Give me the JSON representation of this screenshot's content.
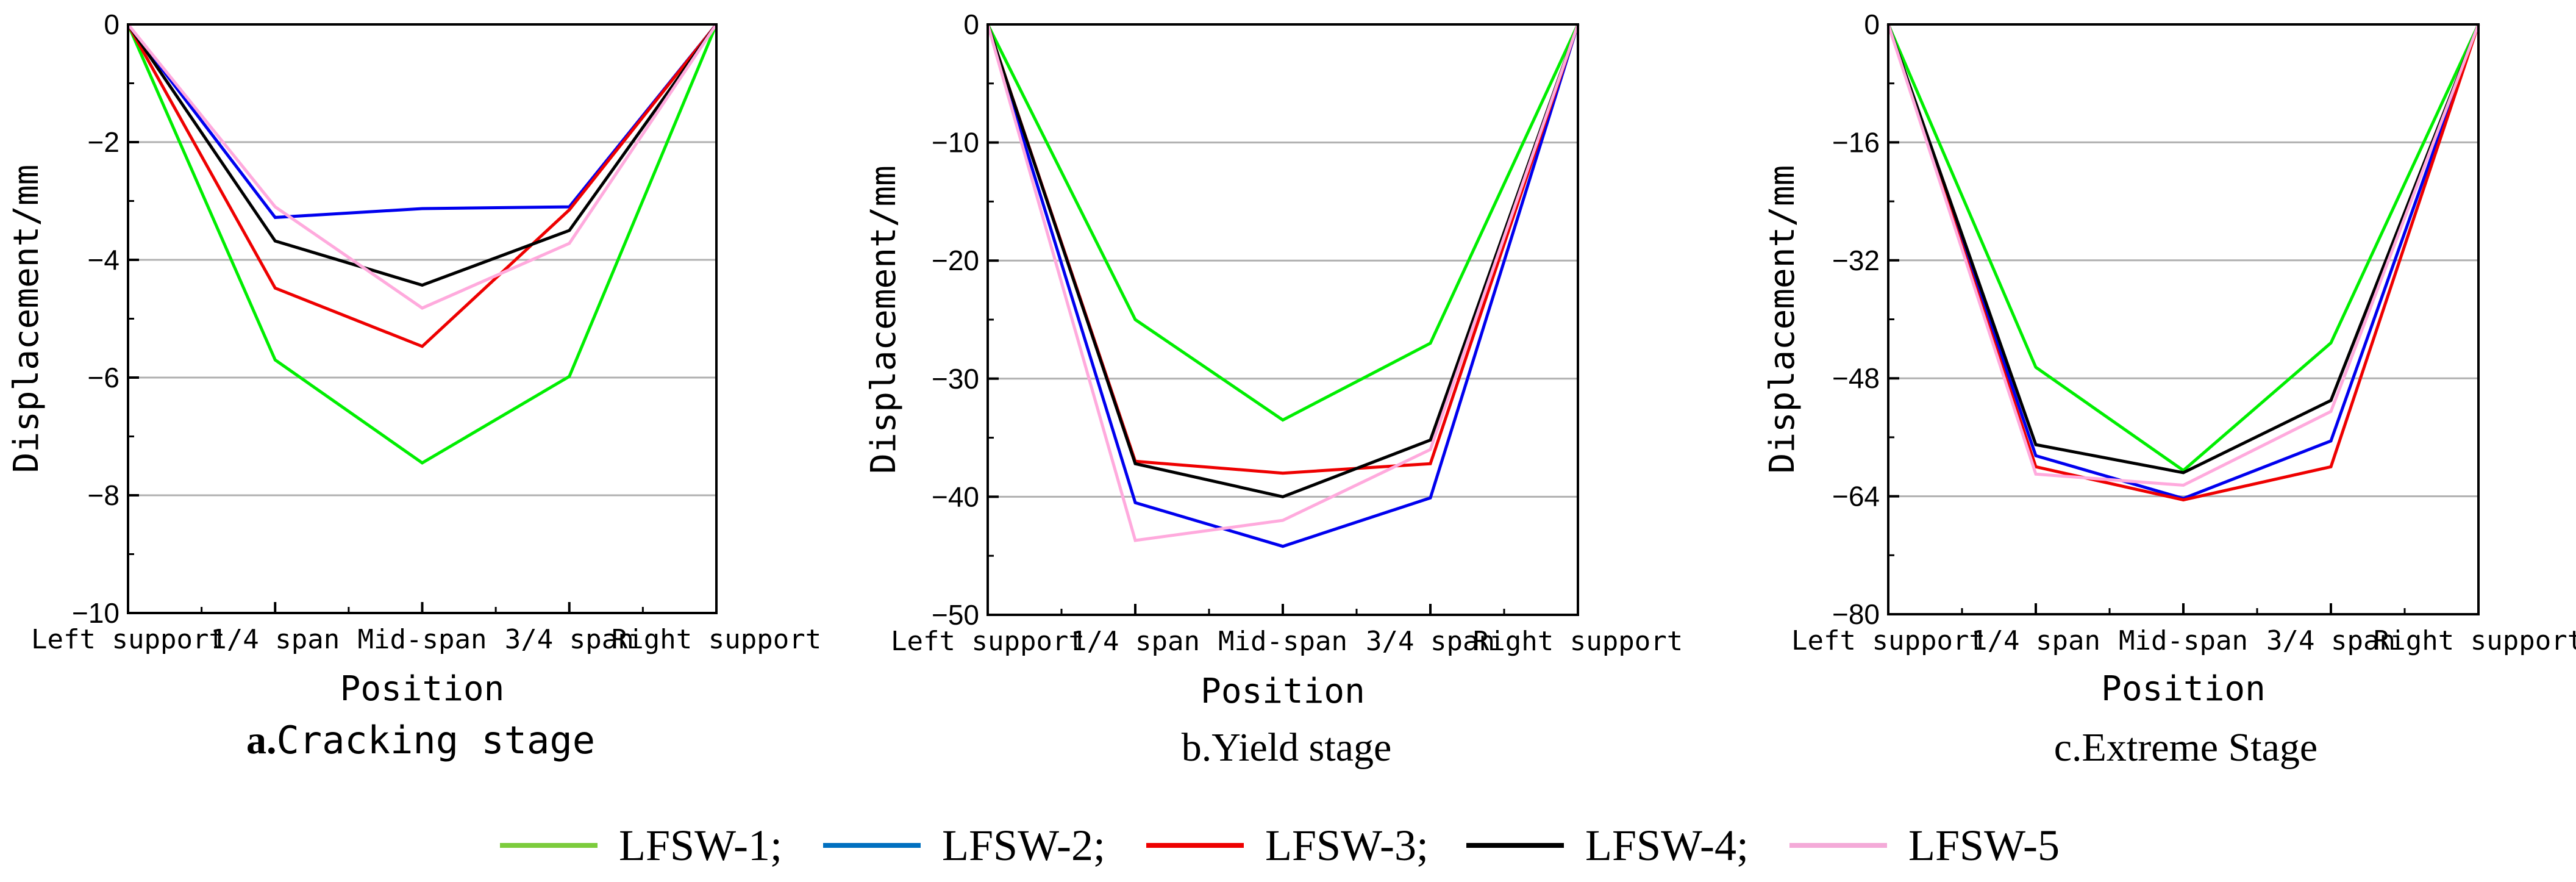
{
  "colors": {
    "LFSW-1": "#00ee00",
    "LFSW-2": "#0000ee",
    "LFSW-3": "#ee0000",
    "LFSW-4": "#000000",
    "LFSW-5": "#ffaadd"
  },
  "legend": {
    "entries": [
      {
        "label": "LFSW-1;",
        "series": "LFSW-1",
        "color": "#7ccc3c"
      },
      {
        "label": "LFSW-2;",
        "series": "LFSW-2",
        "color": "#0070c0"
      },
      {
        "label": "LFSW-3;",
        "series": "LFSW-3",
        "color": "#ee0000"
      },
      {
        "label": "LFSW-4;",
        "series": "LFSW-4",
        "color": "#000000"
      },
      {
        "label": "LFSW-5",
        "series": "LFSW-5",
        "color": "#f4aad8"
      }
    ]
  },
  "chart_data": [
    {
      "type": "line",
      "title_prefix": "a.",
      "title_main": "Cracking stage",
      "xlabel": "Position",
      "ylabel": "Displacement/mm",
      "categories": [
        "Left support",
        "1/4 span",
        "Mid-span",
        "3/4 span",
        "Right support"
      ],
      "ylim": [
        -10,
        0
      ],
      "yticks": [
        0,
        -2,
        -4,
        -6,
        -8,
        -10
      ],
      "ytick_labels": [
        "0",
        "−2",
        "−4",
        "−6",
        "−8",
        "−10"
      ],
      "grid": true,
      "series": [
        {
          "name": "LFSW-1",
          "values": [
            0,
            -5.7,
            -7.45,
            -5.98,
            0
          ]
        },
        {
          "name": "LFSW-2",
          "values": [
            0,
            -3.28,
            -3.13,
            -3.1,
            0
          ]
        },
        {
          "name": "LFSW-3",
          "values": [
            0,
            -4.48,
            -5.47,
            -3.15,
            0
          ]
        },
        {
          "name": "LFSW-4",
          "values": [
            0,
            -3.68,
            -4.43,
            -3.5,
            0
          ]
        },
        {
          "name": "LFSW-5",
          "values": [
            0,
            -3.1,
            -4.82,
            -3.72,
            0
          ]
        }
      ]
    },
    {
      "type": "line",
      "title_prefix": "",
      "title_main": "b.Yield stage",
      "xlabel": "Position",
      "ylabel": "Displacement/mm",
      "categories": [
        "Left support",
        "1/4 span",
        "Mid-span",
        "3/4 span",
        "Right support"
      ],
      "ylim": [
        -50,
        0
      ],
      "yticks": [
        0,
        -10,
        -20,
        -30,
        -40,
        -50
      ],
      "ytick_labels": [
        "0",
        "−10",
        "−20",
        "−30",
        "−40",
        "−50"
      ],
      "grid": true,
      "series": [
        {
          "name": "LFSW-1",
          "values": [
            0,
            -25,
            -33.5,
            -27,
            0
          ]
        },
        {
          "name": "LFSW-2",
          "values": [
            0,
            -40.5,
            -44.2,
            -40.1,
            0
          ]
        },
        {
          "name": "LFSW-3",
          "values": [
            0,
            -37,
            -38,
            -37.2,
            0
          ]
        },
        {
          "name": "LFSW-4",
          "values": [
            0,
            -37.2,
            -40,
            -35.2,
            0
          ]
        },
        {
          "name": "LFSW-5",
          "values": [
            0,
            -43.7,
            -42,
            -36,
            0
          ]
        }
      ]
    },
    {
      "type": "line",
      "title_prefix": "",
      "title_main": "c.Extreme Stage",
      "xlabel": "Position",
      "ylabel": "Displacement/mm",
      "categories": [
        "Left support",
        "1/4 span",
        "Mid-span",
        "3/4 span",
        "Right support"
      ],
      "ylim": [
        -80,
        0
      ],
      "yticks": [
        0,
        -16,
        -32,
        -48,
        -64,
        -80
      ],
      "ytick_labels": [
        "0",
        "−16",
        "−32",
        "−48",
        "−64",
        "−80"
      ],
      "grid": true,
      "series": [
        {
          "name": "LFSW-1",
          "values": [
            0,
            -46.5,
            -60.5,
            -43.2,
            0
          ]
        },
        {
          "name": "LFSW-2",
          "values": [
            0,
            -58.5,
            -64.3,
            -56.5,
            0
          ]
        },
        {
          "name": "LFSW-3",
          "values": [
            0,
            -60,
            -64.5,
            -60,
            0
          ]
        },
        {
          "name": "LFSW-4",
          "values": [
            0,
            -57,
            -60.8,
            -51,
            0
          ]
        },
        {
          "name": "LFSW-5",
          "values": [
            0,
            -61,
            -62.5,
            -52.5,
            0
          ]
        }
      ]
    }
  ]
}
